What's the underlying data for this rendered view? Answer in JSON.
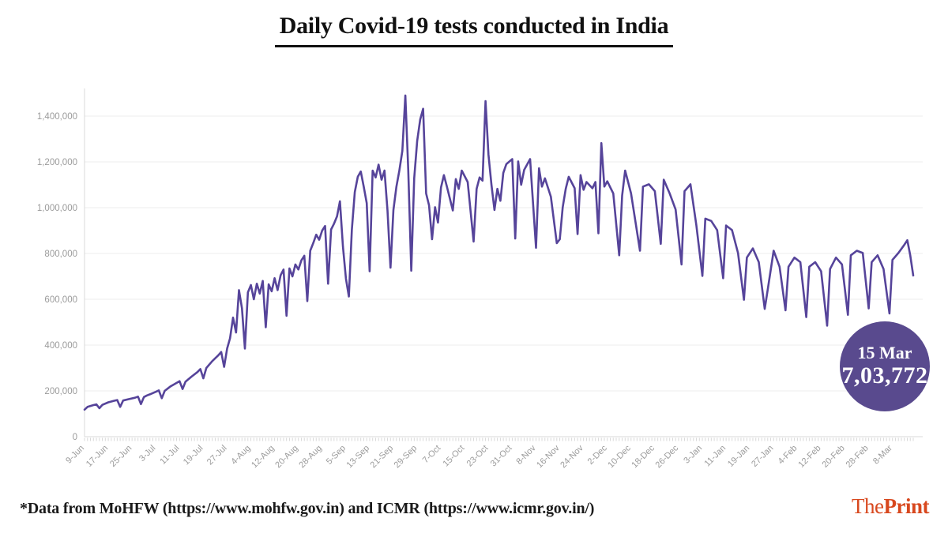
{
  "title": "Daily Covid-19 tests conducted in India",
  "annotation": {
    "date": "15 Mar",
    "value": "7,03,772"
  },
  "footer": {
    "source_note": "*Data from MoHFW (https://www.mohfw.gov.in) and ICMR (https://www.icmr.gov.in/)",
    "brand": {
      "the": "The",
      "print": "Print"
    }
  },
  "colors": {
    "line": "#56449a",
    "badge": "#594a8e",
    "grid": "#ececec",
    "axis": "#d8d8d8",
    "tick_label": "#9b9b9b",
    "title": "#111111",
    "brand": "#d8481e"
  },
  "chart_data": {
    "type": "line",
    "title": "Daily Covid-19 tests conducted in India",
    "xlabel": "",
    "ylabel": "",
    "grid": "horizontal",
    "legend": "none",
    "x_start_date": "9-Jun",
    "x_end_date": "15-Mar",
    "ylim": [
      0,
      1500000
    ],
    "y_ticks": [
      {
        "value": 0,
        "label": "0"
      },
      {
        "value": 200000,
        "label": "200,000"
      },
      {
        "value": 400000,
        "label": "400,000"
      },
      {
        "value": 600000,
        "label": "600,000"
      },
      {
        "value": 800000,
        "label": "800,000"
      },
      {
        "value": 1000000,
        "label": "1,000,000"
      },
      {
        "value": 1200000,
        "label": "1,200,000"
      },
      {
        "value": 1400000,
        "label": "1,400,000"
      }
    ],
    "x_ticks": [
      {
        "offset": 0,
        "label": "9-Jun"
      },
      {
        "offset": 8,
        "label": "17-Jun"
      },
      {
        "offset": 16,
        "label": "25-Jun"
      },
      {
        "offset": 24,
        "label": "3-Jul"
      },
      {
        "offset": 32,
        "label": "11-Jul"
      },
      {
        "offset": 40,
        "label": "19-Jul"
      },
      {
        "offset": 48,
        "label": "27-Jul"
      },
      {
        "offset": 56,
        "label": "4-Aug"
      },
      {
        "offset": 64,
        "label": "12-Aug"
      },
      {
        "offset": 72,
        "label": "20-Aug"
      },
      {
        "offset": 80,
        "label": "28-Aug"
      },
      {
        "offset": 88,
        "label": "5-Sep"
      },
      {
        "offset": 96,
        "label": "13-Sep"
      },
      {
        "offset": 104,
        "label": "21-Sep"
      },
      {
        "offset": 112,
        "label": "29-Sep"
      },
      {
        "offset": 120,
        "label": "7-Oct"
      },
      {
        "offset": 128,
        "label": "15-Oct"
      },
      {
        "offset": 136,
        "label": "23-Oct"
      },
      {
        "offset": 144,
        "label": "31-Oct"
      },
      {
        "offset": 152,
        "label": "8-Nov"
      },
      {
        "offset": 160,
        "label": "16-Nov"
      },
      {
        "offset": 168,
        "label": "24-Nov"
      },
      {
        "offset": 176,
        "label": "2-Dec"
      },
      {
        "offset": 184,
        "label": "10-Dec"
      },
      {
        "offset": 192,
        "label": "18-Dec"
      },
      {
        "offset": 200,
        "label": "26-Dec"
      },
      {
        "offset": 208,
        "label": "3-Jan"
      },
      {
        "offset": 216,
        "label": "11-Jan"
      },
      {
        "offset": 224,
        "label": "19-Jan"
      },
      {
        "offset": 232,
        "label": "27-Jan"
      },
      {
        "offset": 240,
        "label": "4-Feb"
      },
      {
        "offset": 248,
        "label": "12-Feb"
      },
      {
        "offset": 256,
        "label": "20-Feb"
      },
      {
        "offset": 264,
        "label": "28-Feb"
      },
      {
        "offset": 272,
        "label": "8-Mar"
      }
    ],
    "series": [
      {
        "name": "Daily Covid-19 tests",
        "points": [
          [
            0,
            118000
          ],
          [
            1,
            130000
          ],
          [
            3,
            138000
          ],
          [
            4,
            141000
          ],
          [
            5,
            124000
          ],
          [
            6,
            139000
          ],
          [
            8,
            150000
          ],
          [
            10,
            157000
          ],
          [
            11,
            160000
          ],
          [
            12,
            130000
          ],
          [
            13,
            158000
          ],
          [
            15,
            164000
          ],
          [
            17,
            170000
          ],
          [
            18,
            175000
          ],
          [
            19,
            142000
          ],
          [
            20,
            173000
          ],
          [
            21,
            180000
          ],
          [
            22,
            185000
          ],
          [
            24,
            196000
          ],
          [
            25,
            202000
          ],
          [
            26,
            168000
          ],
          [
            27,
            200000
          ],
          [
            29,
            220000
          ],
          [
            31,
            235000
          ],
          [
            32,
            242000
          ],
          [
            33,
            208000
          ],
          [
            34,
            240000
          ],
          [
            36,
            262000
          ],
          [
            38,
            282000
          ],
          [
            39,
            295000
          ],
          [
            40,
            255000
          ],
          [
            41,
            300000
          ],
          [
            43,
            330000
          ],
          [
            45,
            355000
          ],
          [
            46,
            370000
          ],
          [
            47,
            305000
          ],
          [
            48,
            385000
          ],
          [
            49,
            430000
          ],
          [
            50,
            520000
          ],
          [
            51,
            455000
          ],
          [
            52,
            640000
          ],
          [
            53,
            560000
          ],
          [
            54,
            385000
          ],
          [
            55,
            630000
          ],
          [
            56,
            662000
          ],
          [
            57,
            600000
          ],
          [
            58,
            668000
          ],
          [
            59,
            625000
          ],
          [
            60,
            680000
          ],
          [
            61,
            478000
          ],
          [
            62,
            665000
          ],
          [
            63,
            635000
          ],
          [
            64,
            692000
          ],
          [
            65,
            640000
          ],
          [
            66,
            705000
          ],
          [
            67,
            730000
          ],
          [
            68,
            528000
          ],
          [
            69,
            735000
          ],
          [
            70,
            700000
          ],
          [
            71,
            752000
          ],
          [
            72,
            730000
          ],
          [
            73,
            770000
          ],
          [
            74,
            790000
          ],
          [
            75,
            592000
          ],
          [
            76,
            812000
          ],
          [
            77,
            845000
          ],
          [
            78,
            882000
          ],
          [
            79,
            860000
          ],
          [
            80,
            900000
          ],
          [
            81,
            920000
          ],
          [
            82,
            668000
          ],
          [
            83,
            905000
          ],
          [
            84,
            930000
          ],
          [
            85,
            962000
          ],
          [
            86,
            1028000
          ],
          [
            87,
            830000
          ],
          [
            88,
            690000
          ],
          [
            89,
            612000
          ],
          [
            90,
            905000
          ],
          [
            91,
            1068000
          ],
          [
            92,
            1135000
          ],
          [
            93,
            1158000
          ],
          [
            94,
            1092000
          ],
          [
            95,
            1020000
          ],
          [
            96,
            722000
          ],
          [
            97,
            1162000
          ],
          [
            98,
            1132000
          ],
          [
            99,
            1188000
          ],
          [
            100,
            1122000
          ],
          [
            101,
            1162000
          ],
          [
            102,
            988000
          ],
          [
            103,
            738000
          ],
          [
            104,
            990000
          ],
          [
            105,
            1092000
          ],
          [
            106,
            1162000
          ],
          [
            107,
            1248000
          ],
          [
            108,
            1490000
          ],
          [
            109,
            1162000
          ],
          [
            110,
            725000
          ],
          [
            111,
            1128000
          ],
          [
            112,
            1292000
          ],
          [
            113,
            1385000
          ],
          [
            114,
            1432000
          ],
          [
            115,
            1062000
          ],
          [
            116,
            1010000
          ],
          [
            117,
            862000
          ],
          [
            118,
            1002000
          ],
          [
            119,
            935000
          ],
          [
            120,
            1088000
          ],
          [
            121,
            1142000
          ],
          [
            122,
            1092000
          ],
          [
            124,
            988000
          ],
          [
            125,
            1125000
          ],
          [
            126,
            1082000
          ],
          [
            127,
            1162000
          ],
          [
            129,
            1112000
          ],
          [
            131,
            852000
          ],
          [
            132,
            1082000
          ],
          [
            133,
            1132000
          ],
          [
            134,
            1118000
          ],
          [
            135,
            1465000
          ],
          [
            136,
            1232000
          ],
          [
            137,
            1100000
          ],
          [
            138,
            990000
          ],
          [
            139,
            1082000
          ],
          [
            140,
            1030000
          ],
          [
            141,
            1152000
          ],
          [
            142,
            1190000
          ],
          [
            144,
            1212000
          ],
          [
            145,
            865000
          ],
          [
            146,
            1202000
          ],
          [
            147,
            1100000
          ],
          [
            148,
            1165000
          ],
          [
            150,
            1212000
          ],
          [
            152,
            825000
          ],
          [
            153,
            1172000
          ],
          [
            154,
            1092000
          ],
          [
            155,
            1128000
          ],
          [
            157,
            1048000
          ],
          [
            159,
            845000
          ],
          [
            160,
            862000
          ],
          [
            161,
            1002000
          ],
          [
            162,
            1082000
          ],
          [
            163,
            1135000
          ],
          [
            165,
            1085000
          ],
          [
            166,
            885000
          ],
          [
            167,
            1142000
          ],
          [
            168,
            1078000
          ],
          [
            169,
            1112000
          ],
          [
            171,
            1085000
          ],
          [
            172,
            1112000
          ],
          [
            173,
            888000
          ],
          [
            174,
            1282000
          ],
          [
            175,
            1092000
          ],
          [
            176,
            1115000
          ],
          [
            178,
            1062000
          ],
          [
            180,
            792000
          ],
          [
            181,
            1052000
          ],
          [
            182,
            1162000
          ],
          [
            184,
            1062000
          ],
          [
            187,
            812000
          ],
          [
            188,
            1092000
          ],
          [
            190,
            1102000
          ],
          [
            192,
            1072000
          ],
          [
            194,
            842000
          ],
          [
            195,
            1122000
          ],
          [
            197,
            1062000
          ],
          [
            199,
            992000
          ],
          [
            201,
            752000
          ],
          [
            202,
            1072000
          ],
          [
            204,
            1102000
          ],
          [
            206,
            922000
          ],
          [
            208,
            702000
          ],
          [
            209,
            952000
          ],
          [
            211,
            942000
          ],
          [
            213,
            902000
          ],
          [
            215,
            692000
          ],
          [
            216,
            922000
          ],
          [
            218,
            902000
          ],
          [
            220,
            802000
          ],
          [
            222,
            598000
          ],
          [
            223,
            782000
          ],
          [
            225,
            822000
          ],
          [
            227,
            762000
          ],
          [
            229,
            558000
          ],
          [
            230,
            642000
          ],
          [
            232,
            812000
          ],
          [
            234,
            742000
          ],
          [
            236,
            552000
          ],
          [
            237,
            742000
          ],
          [
            239,
            782000
          ],
          [
            241,
            762000
          ],
          [
            243,
            522000
          ],
          [
            244,
            742000
          ],
          [
            246,
            762000
          ],
          [
            248,
            722000
          ],
          [
            250,
            485000
          ],
          [
            251,
            732000
          ],
          [
            253,
            782000
          ],
          [
            255,
            752000
          ],
          [
            257,
            532000
          ],
          [
            258,
            792000
          ],
          [
            260,
            812000
          ],
          [
            262,
            802000
          ],
          [
            264,
            560000
          ],
          [
            265,
            762000
          ],
          [
            267,
            792000
          ],
          [
            269,
            732000
          ],
          [
            271,
            538000
          ],
          [
            272,
            772000
          ],
          [
            274,
            802000
          ],
          [
            276,
            838000
          ],
          [
            277,
            858000
          ],
          [
            278,
            792000
          ],
          [
            279,
            703772
          ]
        ]
      }
    ],
    "annotation": {
      "label": "15 Mar",
      "value": 703772,
      "value_label": "7,03,772"
    }
  }
}
